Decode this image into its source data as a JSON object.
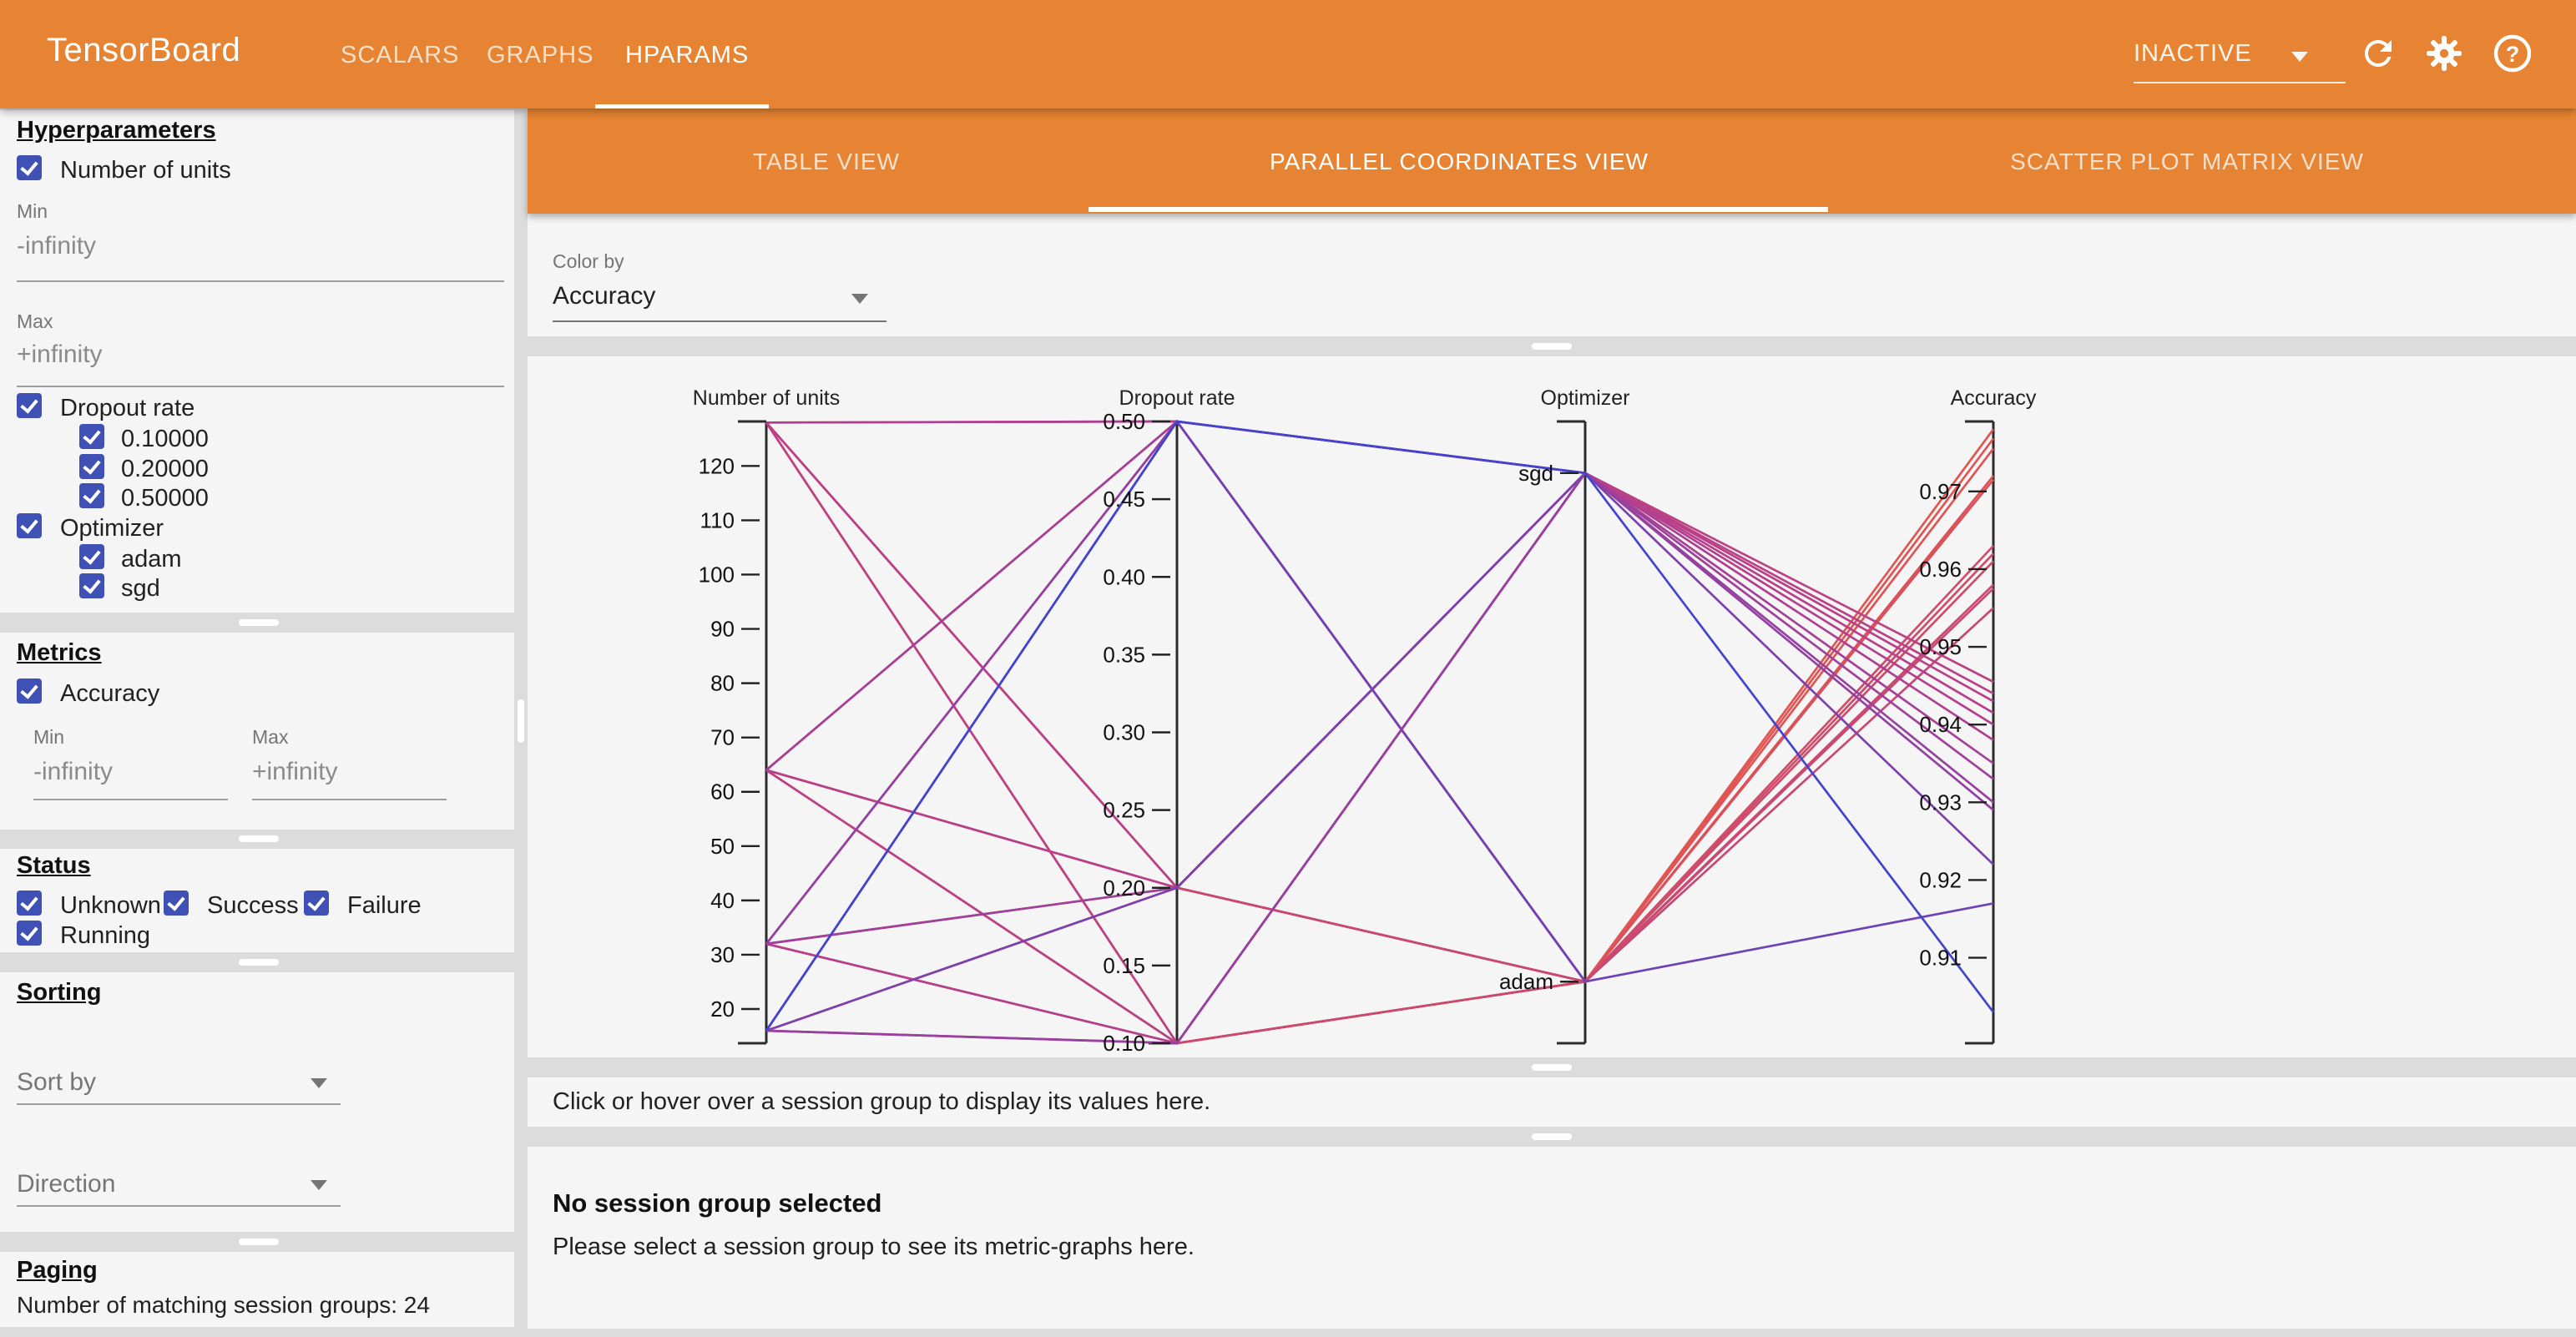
{
  "header": {
    "title": "TensorBoard",
    "nav_tabs": [
      {
        "label": "SCALARS",
        "active": false
      },
      {
        "label": "GRAPHS",
        "active": false
      },
      {
        "label": "HPARAMS",
        "active": true
      }
    ],
    "status_dropdown": {
      "value": "INACTIVE"
    },
    "icons": {
      "reload": "refresh-icon",
      "settings": "gear-icon",
      "help": "help-icon"
    }
  },
  "sidebar": {
    "hyperparameters": {
      "heading": "Hyperparameters",
      "number_of_units": {
        "label": "Number of units",
        "checked": true,
        "min_label": "Min",
        "min_value": "-infinity",
        "max_label": "Max",
        "max_value": "+infinity"
      },
      "dropout_rate": {
        "label": "Dropout rate",
        "checked": true,
        "values": [
          "0.10000",
          "0.20000",
          "0.50000"
        ]
      },
      "optimizer": {
        "label": "Optimizer",
        "checked": true,
        "values": [
          "adam",
          "sgd"
        ]
      }
    },
    "metrics": {
      "heading": "Metrics",
      "accuracy": {
        "label": "Accuracy",
        "checked": true,
        "min_label": "Min",
        "min_value": "-infinity",
        "max_label": "Max",
        "max_value": "+infinity"
      }
    },
    "status": {
      "heading": "Status",
      "options": [
        {
          "label": "Unknown",
          "checked": true
        },
        {
          "label": "Success",
          "checked": true
        },
        {
          "label": "Failure",
          "checked": true
        },
        {
          "label": "Running",
          "checked": true
        }
      ]
    },
    "sorting": {
      "heading": "Sorting",
      "sort_by_placeholder": "Sort by",
      "direction_placeholder": "Direction"
    },
    "paging": {
      "heading": "Paging",
      "summary": "Number of matching session groups: 24"
    }
  },
  "main": {
    "view_tabs": [
      {
        "label": "TABLE VIEW",
        "active": false
      },
      {
        "label": "PARALLEL COORDINATES VIEW",
        "active": true
      },
      {
        "label": "SCATTER PLOT MATRIX VIEW",
        "active": false
      }
    ],
    "color_by": {
      "label": "Color by",
      "value": "Accuracy"
    },
    "values_hint": "Click or hover over a session group to display its values here.",
    "no_selection_title": "No session group selected",
    "no_selection_body": "Please select a session group to see its metric-graphs here."
  },
  "chart_data": {
    "type": "parallel_coordinates",
    "color_by": "Accuracy",
    "colormap": {
      "min": 0.903,
      "max": 0.978,
      "stops": [
        "#4243cf",
        "#b63f8c",
        "#e25551"
      ]
    },
    "columns": [
      "Number of units",
      "Dropout rate",
      "Optimizer",
      "Accuracy"
    ],
    "axes": [
      {
        "name": "Number of units",
        "type": "linear",
        "range": [
          13.7,
          128.2
        ],
        "tick_values": [
          20,
          30,
          40,
          50,
          60,
          70,
          80,
          90,
          100,
          110,
          120
        ],
        "tick_labels": [
          "20",
          "30",
          "40",
          "50",
          "60",
          "70",
          "80",
          "90",
          "100",
          "110",
          "120"
        ]
      },
      {
        "name": "Dropout rate",
        "type": "linear",
        "range": [
          0.1,
          0.5
        ],
        "tick_values": [
          0.1,
          0.15,
          0.2,
          0.25,
          0.3,
          0.35,
          0.4,
          0.45,
          0.5
        ],
        "tick_labels": [
          "0.10",
          "0.15",
          "0.20",
          "0.25",
          "0.30",
          "0.35",
          "0.40",
          "0.45",
          "0.50"
        ]
      },
      {
        "name": "Optimizer",
        "type": "categorical",
        "categories": [
          "sgd",
          "adam"
        ],
        "positions": {
          "sgd": 0.083,
          "adam": 0.901
        }
      },
      {
        "name": "Accuracy",
        "type": "linear",
        "range": [
          0.899,
          0.979
        ],
        "tick_values": [
          0.91,
          0.92,
          0.93,
          0.94,
          0.95,
          0.96,
          0.97
        ],
        "tick_labels": [
          "0.91",
          "0.92",
          "0.93",
          "0.94",
          "0.95",
          "0.96",
          "0.97"
        ]
      }
    ],
    "sessions": [
      {
        "units": 128,
        "dropout": 0.1,
        "optimizer": "adam",
        "accuracy": 0.978
      },
      {
        "units": 128,
        "dropout": 0.2,
        "optimizer": "adam",
        "accuracy": 0.9755
      },
      {
        "units": 128,
        "dropout": 0.5,
        "optimizer": "adam",
        "accuracy": 0.9715
      },
      {
        "units": 64,
        "dropout": 0.1,
        "optimizer": "adam",
        "accuracy": 0.9768
      },
      {
        "units": 64,
        "dropout": 0.2,
        "optimizer": "adam",
        "accuracy": 0.972
      },
      {
        "units": 64,
        "dropout": 0.5,
        "optimizer": "adam",
        "accuracy": 0.962
      },
      {
        "units": 32,
        "dropout": 0.1,
        "optimizer": "adam",
        "accuracy": 0.963
      },
      {
        "units": 32,
        "dropout": 0.2,
        "optimizer": "adam",
        "accuracy": 0.961
      },
      {
        "units": 32,
        "dropout": 0.5,
        "optimizer": "adam",
        "accuracy": 0.958
      },
      {
        "units": 16,
        "dropout": 0.1,
        "optimizer": "adam",
        "accuracy": 0.9575
      },
      {
        "units": 16,
        "dropout": 0.2,
        "optimizer": "adam",
        "accuracy": 0.955
      },
      {
        "units": 16,
        "dropout": 0.5,
        "optimizer": "adam",
        "accuracy": 0.917
      },
      {
        "units": 128,
        "dropout": 0.1,
        "optimizer": "sgd",
        "accuracy": 0.9455
      },
      {
        "units": 128,
        "dropout": 0.2,
        "optimizer": "sgd",
        "accuracy": 0.943
      },
      {
        "units": 128,
        "dropout": 0.5,
        "optimizer": "sgd",
        "accuracy": 0.938
      },
      {
        "units": 64,
        "dropout": 0.1,
        "optimizer": "sgd",
        "accuracy": 0.944
      },
      {
        "units": 64,
        "dropout": 0.2,
        "optimizer": "sgd",
        "accuracy": 0.9415
      },
      {
        "units": 64,
        "dropout": 0.5,
        "optimizer": "sgd",
        "accuracy": 0.935
      },
      {
        "units": 32,
        "dropout": 0.1,
        "optimizer": "sgd",
        "accuracy": 0.94
      },
      {
        "units": 32,
        "dropout": 0.2,
        "optimizer": "sgd",
        "accuracy": 0.933
      },
      {
        "units": 32,
        "dropout": 0.5,
        "optimizer": "sgd",
        "accuracy": 0.929
      },
      {
        "units": 16,
        "dropout": 0.1,
        "optimizer": "sgd",
        "accuracy": 0.93
      },
      {
        "units": 16,
        "dropout": 0.2,
        "optimizer": "sgd",
        "accuracy": 0.922
      },
      {
        "units": 16,
        "dropout": 0.5,
        "optimizer": "sgd",
        "accuracy": 0.903
      }
    ]
  }
}
